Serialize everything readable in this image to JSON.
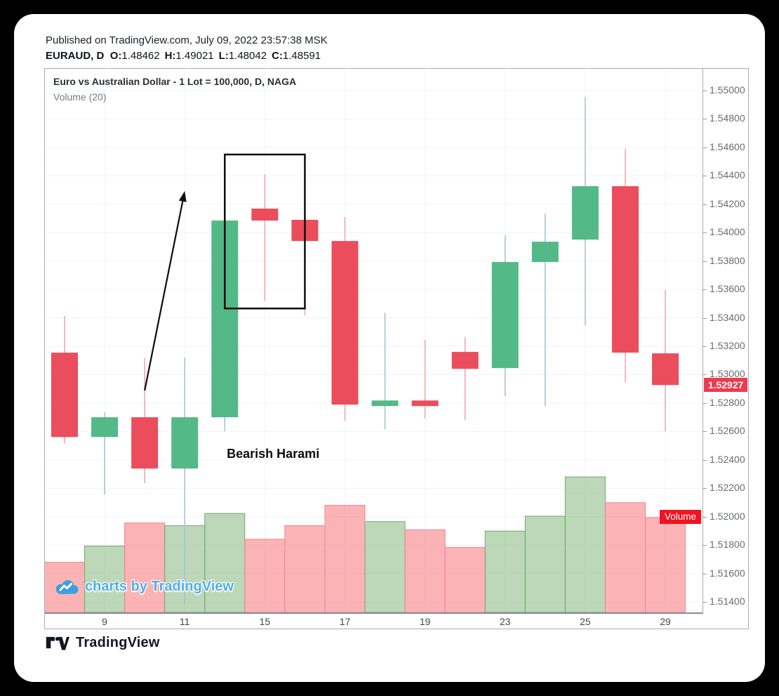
{
  "header": {
    "published": "Published on TradingView.com, July 09, 2022 23:57:38 MSK",
    "symbol": "EURAUD, D",
    "ohlc": [
      {
        "label": "O:",
        "value": "1.48462"
      },
      {
        "label": "H:",
        "value": "1.49021"
      },
      {
        "label": "L:",
        "value": "1.48042"
      },
      {
        "label": "C:",
        "value": "1.48591"
      }
    ]
  },
  "pane": {
    "title": "Euro vs Australian Dollar - 1 Lot = 100,000, D, NAGA",
    "indicator": "Volume (20)",
    "watermark": "charts by TradingView"
  },
  "price_scale": {
    "last_price": "1.52927",
    "volume_label": "Volume",
    "ticks": [
      "1.55000",
      "1.54800",
      "1.54600",
      "1.54400",
      "1.54200",
      "1.54000",
      "1.53800",
      "1.53600",
      "1.53400",
      "1.53200",
      "1.53000",
      "1.52800",
      "1.52600",
      "1.52400",
      "1.52200",
      "1.52000",
      "1.51800",
      "1.51600",
      "1.51400"
    ]
  },
  "x_axis": {
    "labels": [
      {
        "text": "9",
        "candle": 1
      },
      {
        "text": "11",
        "candle": 3
      },
      {
        "text": "15",
        "candle": 5
      },
      {
        "text": "17",
        "candle": 7
      },
      {
        "text": "19",
        "candle": 9
      },
      {
        "text": "23",
        "candle": 11
      },
      {
        "text": "25",
        "candle": 13
      },
      {
        "text": "29",
        "candle": 15
      }
    ]
  },
  "footer": {
    "brand": "TradingView"
  },
  "colors": {
    "up": "#53b987",
    "down": "#eb4d5c",
    "up_wick": "#a5c3d6",
    "down_wick": "#f2a6ae",
    "vol_up_fill": "rgba(106,168,98,0.45)",
    "vol_up_stroke": "#74a86e",
    "vol_down_fill": "rgba(247,103,110,0.5)",
    "vol_down_stroke": "#ef868e",
    "grid": "#f0f3f8",
    "annotation": "#0d0d0d",
    "last_price_badge": "#ef394e",
    "volume_badge": "#ee1520",
    "watermark": "#52ade4"
  },
  "chart_data": {
    "type": "candlestick+volume",
    "symbol": "EURAUD",
    "timeframe": "D",
    "y_axis_range": [
      1.514,
      1.55
    ],
    "grid": true,
    "candles": [
      {
        "o": 1.53155,
        "h": 1.53412,
        "l": 1.52517,
        "c": 1.52561,
        "dir": "down"
      },
      {
        "o": 1.52561,
        "h": 1.52734,
        "l": 1.52156,
        "c": 1.527,
        "dir": "up"
      },
      {
        "o": 1.527,
        "h": 1.53115,
        "l": 1.52235,
        "c": 1.52339,
        "dir": "down"
      },
      {
        "o": 1.52339,
        "h": 1.5312,
        "l": 1.51379,
        "c": 1.527,
        "dir": "up"
      },
      {
        "o": 1.527,
        "h": 1.54476,
        "l": 1.52601,
        "c": 1.54085,
        "dir": "up"
      },
      {
        "o": 1.54169,
        "h": 1.54411,
        "l": 1.53521,
        "c": 1.54085,
        "dir": "down"
      },
      {
        "o": 1.5409,
        "h": 1.54253,
        "l": 1.53417,
        "c": 1.53941,
        "dir": "down"
      },
      {
        "o": 1.53941,
        "h": 1.5411,
        "l": 1.52675,
        "c": 1.52789,
        "dir": "down"
      },
      {
        "o": 1.52779,
        "h": 1.53437,
        "l": 1.52616,
        "c": 1.52818,
        "dir": "up"
      },
      {
        "o": 1.52818,
        "h": 1.53244,
        "l": 1.5269,
        "c": 1.52779,
        "dir": "down"
      },
      {
        "o": 1.5316,
        "h": 1.53264,
        "l": 1.5268,
        "c": 1.53041,
        "dir": "down"
      },
      {
        "o": 1.53046,
        "h": 1.53981,
        "l": 1.52848,
        "c": 1.53793,
        "dir": "up"
      },
      {
        "o": 1.53793,
        "h": 1.54134,
        "l": 1.52779,
        "c": 1.53936,
        "dir": "up"
      },
      {
        "o": 1.53951,
        "h": 1.54955,
        "l": 1.53348,
        "c": 1.54327,
        "dir": "up"
      },
      {
        "o": 1.54327,
        "h": 1.54589,
        "l": 1.52947,
        "c": 1.53155,
        "dir": "down"
      },
      {
        "o": 1.5315,
        "h": 1.53595,
        "l": 1.52601,
        "c": 1.52927,
        "dir": "down"
      }
    ],
    "volume_rel": [
      0.37,
      0.49,
      0.66,
      0.64,
      0.73,
      0.54,
      0.64,
      0.79,
      0.67,
      0.61,
      0.48,
      0.6,
      0.71,
      1.0,
      0.81,
      0.7
    ],
    "annotations": {
      "rect": {
        "from_candle": 4,
        "to_candle": 6,
        "price_top": 1.5455,
        "price_bottom": 1.53466
      },
      "arrow": {
        "from_candle": 2,
        "from_price": 1.52888,
        "to_candle": 3,
        "to_price": 1.54293
      },
      "label": {
        "text": "Bearish Harami",
        "candle_x": 4.05,
        "price": 1.52437
      }
    }
  }
}
